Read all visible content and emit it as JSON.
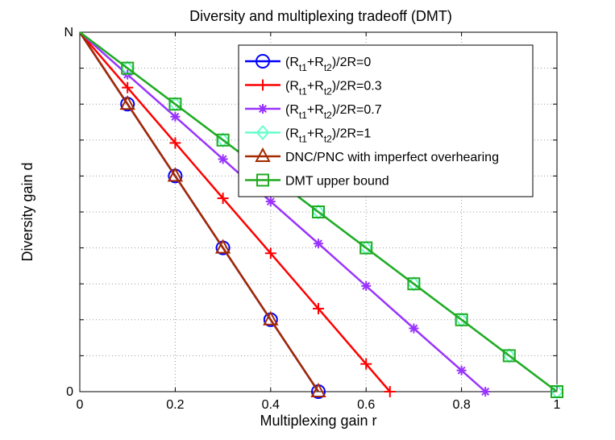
{
  "chart_data": {
    "type": "line",
    "title": "Diversity and multiplexing tradeoff (DMT)",
    "xlabel": "Multiplexing gain r",
    "ylabel": "Diversity gain d",
    "xlim": [
      0,
      1
    ],
    "ylim": [
      0,
      1
    ],
    "x_ticks": [
      {
        "value": 0,
        "label": "0"
      },
      {
        "value": 0.2,
        "label": "0.2"
      },
      {
        "value": 0.4,
        "label": "0.4"
      },
      {
        "value": 0.6,
        "label": "0.6"
      },
      {
        "value": 0.8,
        "label": "0.8"
      },
      {
        "value": 1,
        "label": "1"
      }
    ],
    "y_ticks": [
      {
        "value": 0,
        "label": "0"
      },
      {
        "value": 1,
        "label": "N"
      }
    ],
    "y_minor_ticks": [
      0.1,
      0.2,
      0.3,
      0.4,
      0.5,
      0.6,
      0.7,
      0.8,
      0.9
    ],
    "grid": true,
    "legend_position": "top-right",
    "series": [
      {
        "name": "(R_t1+R_t2)/2R=0",
        "color": "#0000ff",
        "marker": "circle",
        "x": [
          0,
          0.1,
          0.2,
          0.3,
          0.4,
          0.5
        ],
        "y": [
          1,
          0.8,
          0.6,
          0.4,
          0.2,
          0
        ]
      },
      {
        "name": "(R_t1+R_t2)/2R=0.3",
        "color": "#ff0000",
        "marker": "plus",
        "x": [
          0,
          0.1,
          0.2,
          0.3,
          0.4,
          0.5,
          0.6,
          0.65
        ],
        "y": [
          1,
          0.846,
          0.692,
          0.538,
          0.385,
          0.231,
          0.077,
          0
        ]
      },
      {
        "name": "(R_t1+R_t2)/2R=0.7",
        "color": "#9933ff",
        "marker": "star",
        "x": [
          0,
          0.1,
          0.2,
          0.3,
          0.4,
          0.5,
          0.6,
          0.7,
          0.8,
          0.85
        ],
        "y": [
          1,
          0.882,
          0.765,
          0.647,
          0.529,
          0.412,
          0.294,
          0.176,
          0.059,
          0
        ]
      },
      {
        "name": "(R_t1+R_t2)/2R=1",
        "color": "#66ffcc",
        "marker": "diamond",
        "x": [
          0,
          0.1,
          0.2,
          0.3,
          0.4,
          0.5,
          0.6,
          0.7,
          0.8,
          0.9,
          1
        ],
        "y": [
          1,
          0.9,
          0.8,
          0.7,
          0.6,
          0.5,
          0.4,
          0.3,
          0.2,
          0.1,
          0
        ]
      },
      {
        "name": "DNC/PNC with imperfect overhearing",
        "color": "#a52a00",
        "marker": "triangle",
        "x": [
          0,
          0.1,
          0.2,
          0.3,
          0.4,
          0.5
        ],
        "y": [
          1,
          0.8,
          0.6,
          0.4,
          0.2,
          0
        ]
      },
      {
        "name": "DMT upper bound",
        "color": "#22aa22",
        "marker": "square",
        "x": [
          0,
          0.1,
          0.2,
          0.3,
          0.4,
          0.5,
          0.6,
          0.7,
          0.8,
          0.9,
          1
        ],
        "y": [
          1,
          0.9,
          0.8,
          0.7,
          0.6,
          0.5,
          0.4,
          0.3,
          0.2,
          0.1,
          0
        ]
      }
    ],
    "legend": [
      {
        "main": "(R",
        "sub1": "t1",
        "mid": "+R",
        "sub2": "t2",
        "tail": ")/2R=0"
      },
      {
        "main": "(R",
        "sub1": "t1",
        "mid": "+R",
        "sub2": "t2",
        "tail": ")/2R=0.3"
      },
      {
        "main": "(R",
        "sub1": "t1",
        "mid": "+R",
        "sub2": "t2",
        "tail": ")/2R=0.7"
      },
      {
        "main": "(R",
        "sub1": "t1",
        "mid": "+R",
        "sub2": "t2",
        "tail": ")/2R=1"
      },
      {
        "main": "DNC/PNC with imperfect overhearing"
      },
      {
        "main": "DMT upper bound"
      }
    ]
  }
}
